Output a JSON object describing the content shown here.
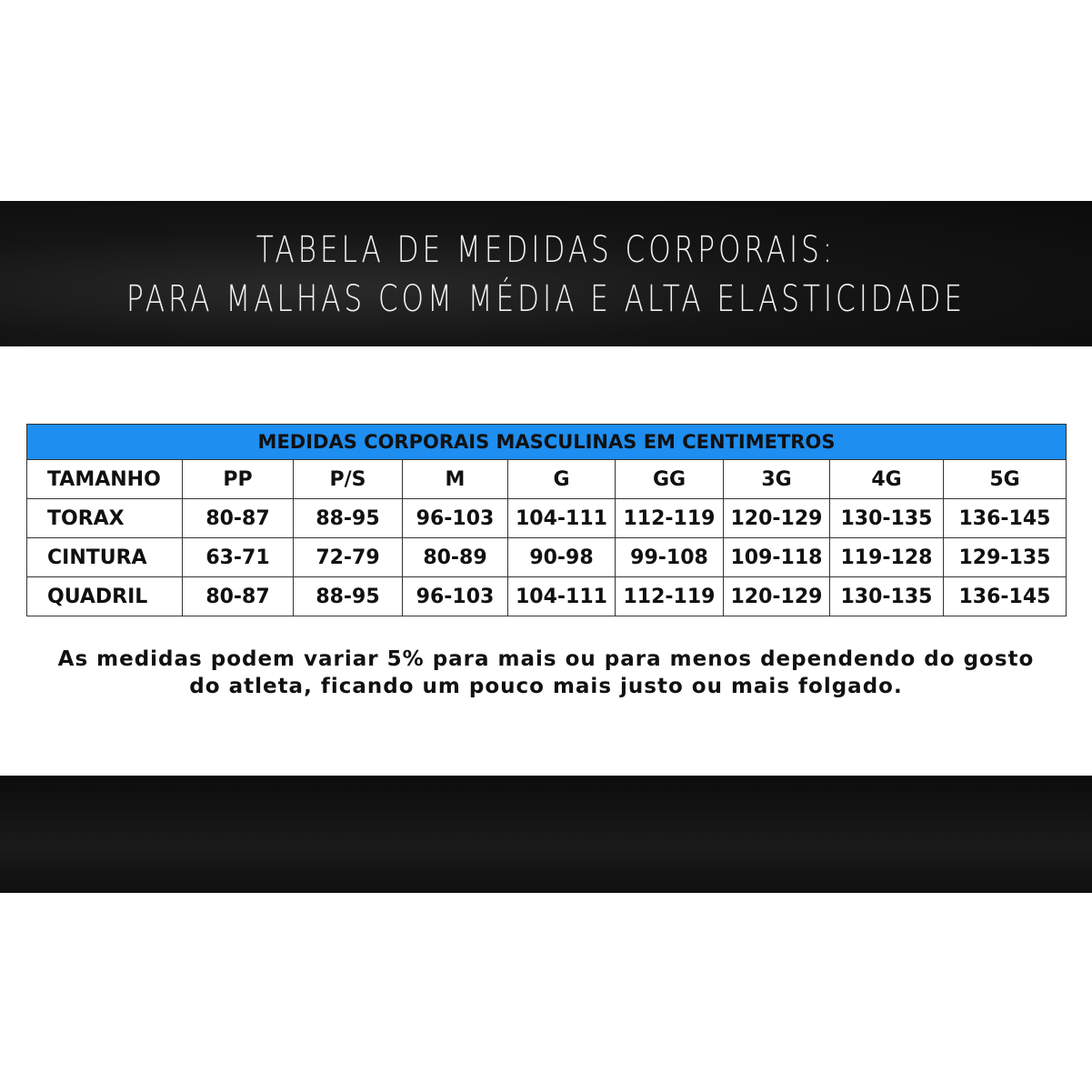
{
  "banner": {
    "line1": "TABELA DE MEDIDAS CORPORAIS:",
    "line2": "PARA MALHAS COM MÉDIA E ALTA ELASTICIDADE"
  },
  "table": {
    "title": "MEDIDAS CORPORAIS MASCULINAS EM CENTIMETROS",
    "header": [
      "TAMANHO",
      "PP",
      "P/S",
      "M",
      "G",
      "GG",
      "3G",
      "4G",
      "5G"
    ],
    "rows": [
      [
        "TORAX",
        "80-87",
        "88-95",
        "96-103",
        "104-111",
        "112-119",
        "120-129",
        "130-135",
        "136-145"
      ],
      [
        "CINTURA",
        "63-71",
        "72-79",
        "80-89",
        "90-98",
        "99-108",
        "109-118",
        "119-128",
        "129-135"
      ],
      [
        "QUADRIL",
        "80-87",
        "88-95",
        "96-103",
        "104-111",
        "112-119",
        "120-129",
        "130-135",
        "136-145"
      ]
    ],
    "header_color": "#1e8ef0"
  },
  "note": {
    "line1": "As medidas podem variar 5% para mais ou para menos dependendo do gosto",
    "line2": "do atleta, ficando um pouco mais justo ou mais folgado."
  }
}
